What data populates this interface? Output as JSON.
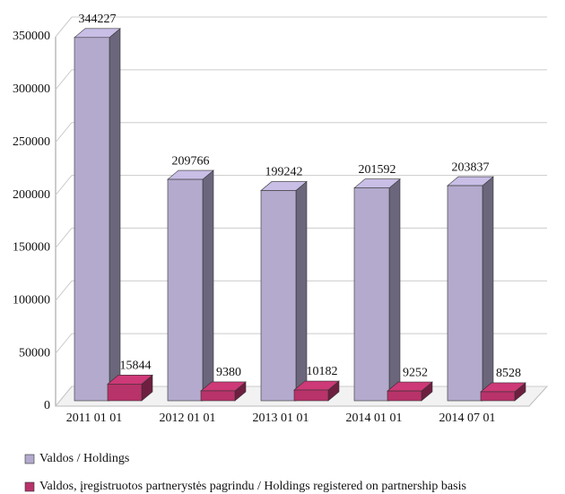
{
  "chart_data": {
    "type": "bar3d",
    "categories": [
      "2011 01 01",
      "2012 01 01",
      "2013 01 01",
      "2014 01 01",
      "2014 07 01"
    ],
    "series": [
      {
        "name": "Valdos / Holdings",
        "color": "#b3aacd",
        "values": [
          344227,
          209766,
          199242,
          201592,
          203837
        ]
      },
      {
        "name": "Valdos, įregistruotos partnerystės pagrindu / Holdings registered on partnership basis",
        "color": "#b8336a",
        "values": [
          15844,
          9380,
          10182,
          9252,
          8528
        ]
      }
    ],
    "ylim": [
      0,
      350000
    ],
    "yticks": [
      0,
      50000,
      100000,
      150000,
      200000,
      250000,
      300000,
      350000
    ],
    "grid": true
  }
}
